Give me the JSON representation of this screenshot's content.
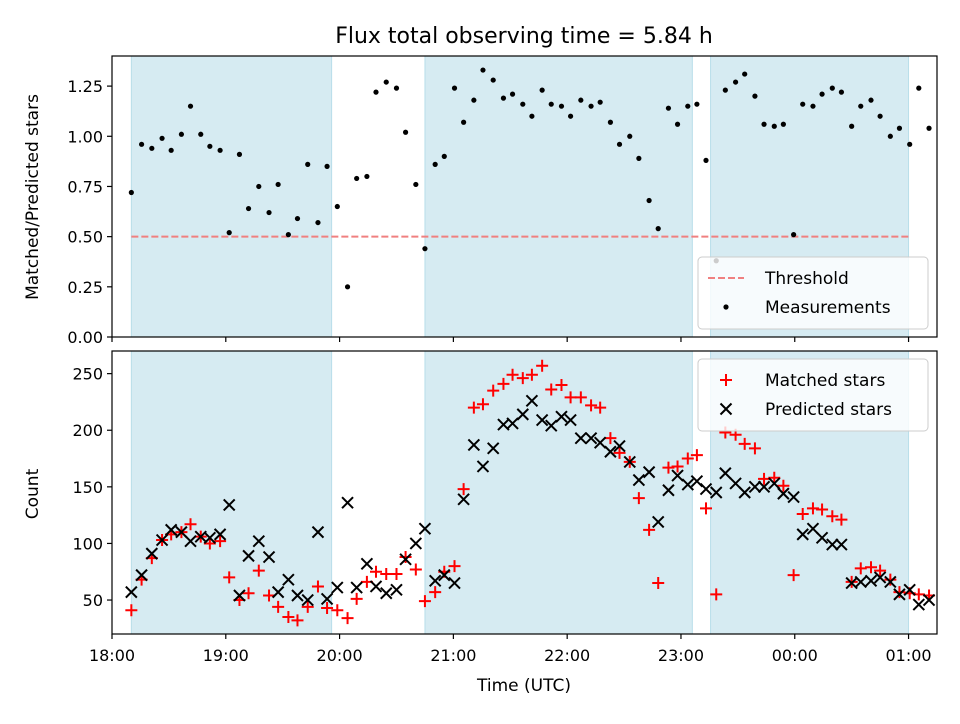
{
  "chart_data": [
    {
      "type": "scatter",
      "title": "Flux total observing time = 5.84 h",
      "xlabel": "",
      "ylabel": "Matched/Predicted stars",
      "ylim": [
        0,
        1.4
      ],
      "yticks": [
        "0.00",
        "0.25",
        "0.50",
        "0.75",
        "1.00",
        "1.25"
      ],
      "ytick_values": [
        0,
        0.25,
        0.5,
        0.75,
        1.0,
        1.25
      ],
      "xlim": [
        18.0,
        25.25
      ],
      "xticks": [
        "18:00",
        "19:00",
        "20:00",
        "21:00",
        "22:00",
        "23:00",
        "00:00",
        "01:00"
      ],
      "xtick_values": [
        18,
        19,
        20,
        21,
        22,
        23,
        24,
        25
      ],
      "shaded_spans": [
        [
          18.17,
          19.93
        ],
        [
          20.75,
          23.1
        ],
        [
          23.26,
          25.0
        ]
      ],
      "threshold": {
        "name": "Threshold",
        "value": 0.5,
        "color": "#f08080"
      },
      "legend_position": "lower-right",
      "series": [
        {
          "name": "Measurements",
          "color": "#000000",
          "points": [
            [
              18.17,
              0.72
            ],
            [
              18.26,
              0.96
            ],
            [
              18.35,
              0.94
            ],
            [
              18.44,
              0.99
            ],
            [
              18.52,
              0.93
            ],
            [
              18.61,
              1.01
            ],
            [
              18.69,
              1.15
            ],
            [
              18.78,
              1.01
            ],
            [
              18.86,
              0.95
            ],
            [
              18.95,
              0.93
            ],
            [
              19.03,
              0.52
            ],
            [
              19.12,
              0.91
            ],
            [
              19.2,
              0.64
            ],
            [
              19.29,
              0.75
            ],
            [
              19.38,
              0.62
            ],
            [
              19.46,
              0.76
            ],
            [
              19.55,
              0.51
            ],
            [
              19.63,
              0.59
            ],
            [
              19.72,
              0.86
            ],
            [
              19.81,
              0.57
            ],
            [
              19.89,
              0.85
            ],
            [
              19.98,
              0.65
            ],
            [
              20.07,
              0.25
            ],
            [
              20.15,
              0.79
            ],
            [
              20.24,
              0.8
            ],
            [
              20.32,
              1.22
            ],
            [
              20.41,
              1.27
            ],
            [
              20.5,
              1.24
            ],
            [
              20.58,
              1.02
            ],
            [
              20.67,
              0.76
            ],
            [
              20.75,
              0.44
            ],
            [
              20.84,
              0.86
            ],
            [
              20.92,
              0.9
            ],
            [
              21.01,
              1.24
            ],
            [
              21.09,
              1.07
            ],
            [
              21.18,
              1.18
            ],
            [
              21.26,
              1.33
            ],
            [
              21.35,
              1.28
            ],
            [
              21.44,
              1.19
            ],
            [
              21.52,
              1.21
            ],
            [
              21.61,
              1.16
            ],
            [
              21.69,
              1.1
            ],
            [
              21.78,
              1.23
            ],
            [
              21.86,
              1.16
            ],
            [
              21.95,
              1.15
            ],
            [
              22.03,
              1.1
            ],
            [
              22.12,
              1.18
            ],
            [
              22.21,
              1.15
            ],
            [
              22.29,
              1.17
            ],
            [
              22.38,
              1.07
            ],
            [
              22.46,
              0.96
            ],
            [
              22.55,
              1.0
            ],
            [
              22.63,
              0.89
            ],
            [
              22.72,
              0.68
            ],
            [
              22.8,
              0.54
            ],
            [
              22.89,
              1.14
            ],
            [
              22.97,
              1.06
            ],
            [
              23.06,
              1.15
            ],
            [
              23.14,
              1.16
            ],
            [
              23.22,
              0.88
            ],
            [
              23.31,
              0.38
            ],
            [
              23.39,
              1.23
            ],
            [
              23.48,
              1.27
            ],
            [
              23.56,
              1.31
            ],
            [
              23.65,
              1.2
            ],
            [
              23.73,
              1.06
            ],
            [
              23.82,
              1.05
            ],
            [
              23.9,
              1.06
            ],
            [
              23.99,
              0.51
            ],
            [
              24.07,
              1.16
            ],
            [
              24.16,
              1.15
            ],
            [
              24.24,
              1.21
            ],
            [
              24.33,
              1.24
            ],
            [
              24.41,
              1.22
            ],
            [
              24.5,
              1.05
            ],
            [
              24.58,
              1.15
            ],
            [
              24.67,
              1.18
            ],
            [
              24.75,
              1.1
            ],
            [
              24.84,
              1.0
            ],
            [
              24.92,
              1.04
            ],
            [
              25.01,
              0.96
            ],
            [
              25.09,
              1.24
            ],
            [
              25.18,
              1.04
            ]
          ]
        }
      ]
    },
    {
      "type": "scatter",
      "title": "",
      "xlabel": "Time (UTC)",
      "ylabel": "Count",
      "ylim": [
        20,
        270
      ],
      "yticks": [
        "50",
        "100",
        "150",
        "200",
        "250"
      ],
      "ytick_values": [
        50,
        100,
        150,
        200,
        250
      ],
      "xlim": [
        18.0,
        25.25
      ],
      "xticks": [
        "18:00",
        "19:00",
        "20:00",
        "21:00",
        "22:00",
        "23:00",
        "00:00",
        "01:00"
      ],
      "xtick_values": [
        18,
        19,
        20,
        21,
        22,
        23,
        24,
        25
      ],
      "shaded_spans": [
        [
          18.17,
          19.93
        ],
        [
          20.75,
          23.1
        ],
        [
          23.26,
          25.0
        ]
      ],
      "legend_position": "top-right",
      "series": [
        {
          "name": "Matched stars",
          "color": "#ff0000",
          "marker": "plus",
          "points": [
            [
              18.17,
              41
            ],
            [
              18.26,
              68
            ],
            [
              18.35,
              87
            ],
            [
              18.44,
              103
            ],
            [
              18.52,
              108
            ],
            [
              18.61,
              110
            ],
            [
              18.69,
              117
            ],
            [
              18.78,
              106
            ],
            [
              18.86,
              100
            ],
            [
              18.95,
              102
            ],
            [
              19.03,
              70
            ],
            [
              19.12,
              50
            ],
            [
              19.2,
              56
            ],
            [
              19.29,
              76
            ],
            [
              19.38,
              54
            ],
            [
              19.46,
              44
            ],
            [
              19.55,
              35
            ],
            [
              19.63,
              32
            ],
            [
              19.72,
              44
            ],
            [
              19.81,
              62
            ],
            [
              19.89,
              43
            ],
            [
              19.98,
              41
            ],
            [
              20.07,
              34
            ],
            [
              20.15,
              51
            ],
            [
              20.24,
              66
            ],
            [
              20.32,
              75
            ],
            [
              20.41,
              73
            ],
            [
              20.5,
              73
            ],
            [
              20.58,
              88
            ],
            [
              20.67,
              77
            ],
            [
              20.75,
              49
            ],
            [
              20.84,
              57
            ],
            [
              20.92,
              75
            ],
            [
              21.01,
              80
            ],
            [
              21.09,
              148
            ],
            [
              21.18,
              220
            ],
            [
              21.26,
              223
            ],
            [
              21.35,
              235
            ],
            [
              21.44,
              241
            ],
            [
              21.52,
              249
            ],
            [
              21.61,
              246
            ],
            [
              21.69,
              249
            ],
            [
              21.78,
              257
            ],
            [
              21.86,
              236
            ],
            [
              21.95,
              240
            ],
            [
              22.03,
              229
            ],
            [
              22.12,
              229
            ],
            [
              22.21,
              222
            ],
            [
              22.29,
              220
            ],
            [
              22.38,
              193
            ],
            [
              22.46,
              180
            ],
            [
              22.55,
              172
            ],
            [
              22.63,
              140
            ],
            [
              22.72,
              112
            ],
            [
              22.8,
              65
            ],
            [
              22.89,
              167
            ],
            [
              22.97,
              168
            ],
            [
              23.06,
              175
            ],
            [
              23.14,
              178
            ],
            [
              23.22,
              131
            ],
            [
              23.31,
              55
            ],
            [
              23.39,
              198
            ],
            [
              23.48,
              196
            ],
            [
              23.56,
              188
            ],
            [
              23.65,
              184
            ],
            [
              23.73,
              157
            ],
            [
              23.82,
              158
            ],
            [
              23.9,
              151
            ],
            [
              23.99,
              72
            ],
            [
              24.07,
              126
            ],
            [
              24.16,
              131
            ],
            [
              24.24,
              130
            ],
            [
              24.33,
              124
            ],
            [
              24.41,
              121
            ],
            [
              24.5,
              66
            ],
            [
              24.58,
              78
            ],
            [
              24.67,
              79
            ],
            [
              24.75,
              76
            ],
            [
              24.84,
              68
            ],
            [
              24.92,
              57
            ],
            [
              25.01,
              56
            ],
            [
              25.09,
              55
            ],
            [
              25.18,
              54
            ]
          ]
        },
        {
          "name": "Predicted stars",
          "color": "#000000",
          "marker": "x",
          "points": [
            [
              18.17,
              57
            ],
            [
              18.26,
              72
            ],
            [
              18.35,
              91
            ],
            [
              18.44,
              103
            ],
            [
              18.52,
              112
            ],
            [
              18.61,
              110
            ],
            [
              18.69,
              102
            ],
            [
              18.78,
              106
            ],
            [
              18.86,
              105
            ],
            [
              18.95,
              108
            ],
            [
              19.03,
              134
            ],
            [
              19.12,
              54
            ],
            [
              19.2,
              89
            ],
            [
              19.29,
              102
            ],
            [
              19.38,
              88
            ],
            [
              19.46,
              57
            ],
            [
              19.55,
              68
            ],
            [
              19.63,
              54
            ],
            [
              19.72,
              50
            ],
            [
              19.81,
              110
            ],
            [
              19.89,
              51
            ],
            [
              19.98,
              61
            ],
            [
              20.07,
              136
            ],
            [
              20.15,
              61
            ],
            [
              20.24,
              82
            ],
            [
              20.32,
              62
            ],
            [
              20.41,
              56
            ],
            [
              20.5,
              59
            ],
            [
              20.58,
              86
            ],
            [
              20.67,
              100
            ],
            [
              20.75,
              113
            ],
            [
              20.84,
              67
            ],
            [
              20.92,
              72
            ],
            [
              21.01,
              65
            ],
            [
              21.09,
              139
            ],
            [
              21.18,
              187
            ],
            [
              21.26,
              168
            ],
            [
              21.35,
              184
            ],
            [
              21.44,
              205
            ],
            [
              21.52,
              206
            ],
            [
              21.61,
              214
            ],
            [
              21.69,
              226
            ],
            [
              21.78,
              209
            ],
            [
              21.86,
              204
            ],
            [
              21.95,
              212
            ],
            [
              22.03,
              209
            ],
            [
              22.12,
              193
            ],
            [
              22.21,
              193
            ],
            [
              22.29,
              189
            ],
            [
              22.38,
              181
            ],
            [
              22.46,
              186
            ],
            [
              22.55,
              172
            ],
            [
              22.63,
              156
            ],
            [
              22.72,
              163
            ],
            [
              22.8,
              119
            ],
            [
              22.89,
              147
            ],
            [
              22.97,
              160
            ],
            [
              23.06,
              152
            ],
            [
              23.14,
              155
            ],
            [
              23.22,
              148
            ],
            [
              23.31,
              145
            ],
            [
              23.39,
              162
            ],
            [
              23.48,
              153
            ],
            [
              23.56,
              145
            ],
            [
              23.65,
              150
            ],
            [
              23.73,
              150
            ],
            [
              23.82,
              153
            ],
            [
              23.9,
              144
            ],
            [
              23.99,
              141
            ],
            [
              24.07,
              108
            ],
            [
              24.16,
              113
            ],
            [
              24.24,
              105
            ],
            [
              24.33,
              99
            ],
            [
              24.41,
              99
            ],
            [
              24.5,
              65
            ],
            [
              24.58,
              66
            ],
            [
              24.67,
              67
            ],
            [
              24.75,
              70
            ],
            [
              24.84,
              66
            ],
            [
              24.92,
              55
            ],
            [
              25.01,
              59
            ],
            [
              25.09,
              46
            ],
            [
              25.18,
              50
            ]
          ]
        }
      ]
    }
  ]
}
